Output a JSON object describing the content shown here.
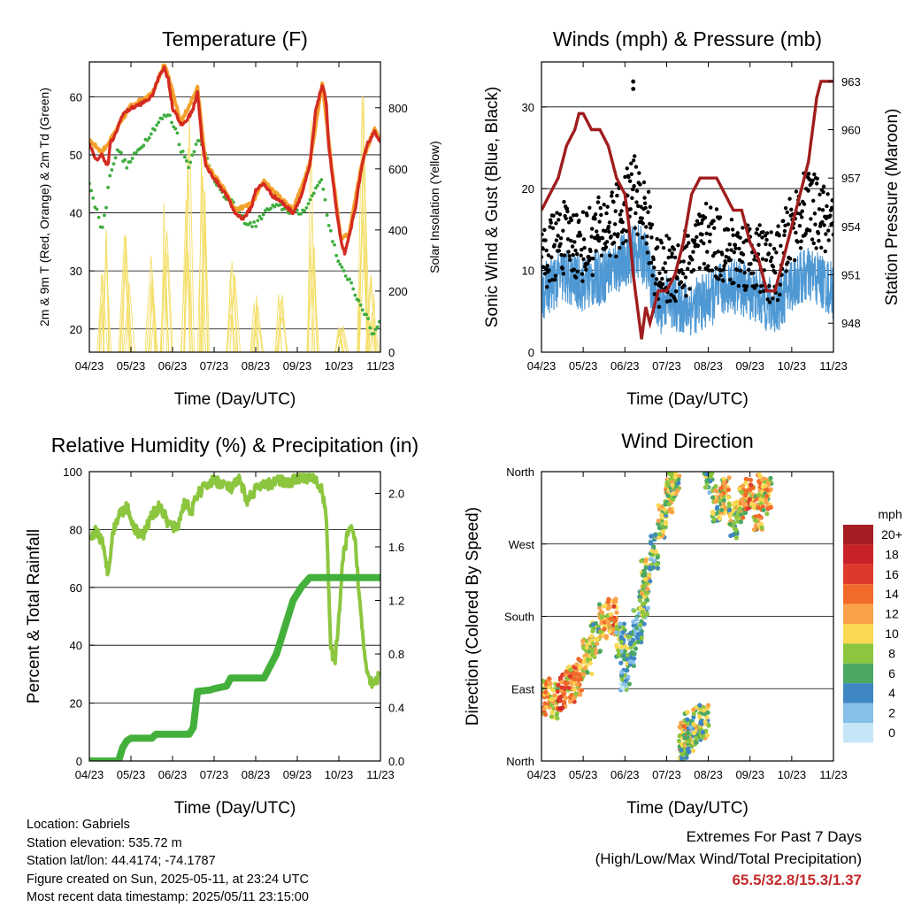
{
  "info": {
    "location": "Location: Gabriels",
    "elevation": "Station elevation: 535.72 m",
    "latlon": "Station lat/lon: 44.4174; -74.1787",
    "created": "Figure created on Sun, 2025-05-11, at 23:24 UTC",
    "latest": "Most recent data timestamp: 2025/05/11 23:15:00"
  },
  "extremes": {
    "title": "Extremes For Past 7 Days",
    "subtitle": "(High/Low/Max Wind/Total Precipitation)",
    "values": "65.5/32.8/15.3/1.37"
  },
  "colors": {
    "temp2m": "#d42b20",
    "temp9m": "#f4a12c",
    "dewpoint": "#3fae3f",
    "solar": "#f4df6b",
    "wind": "#4e98d4",
    "gust": "#000000",
    "pressure": "#a01d1d",
    "rh": "#8cc63f",
    "precip": "#44b03c"
  },
  "chart_data": [
    {
      "type": "line",
      "title": "Temperature (F)",
      "xlabel": "Time (Day/UTC)",
      "ylabel": "2m & 9m T (Red, Orange) & 2m Td (Green)",
      "y2label": "Solar Insolation (Yellow)",
      "x_ticks": [
        "04/23",
        "05/23",
        "06/23",
        "07/23",
        "08/23",
        "09/23",
        "10/23",
        "11/23"
      ],
      "xlim": [
        0,
        7
      ],
      "ylim": [
        16,
        66
      ],
      "yticks": [
        20,
        30,
        40,
        50,
        60
      ],
      "y2lim": [
        0,
        950
      ],
      "y2ticks": [
        0,
        200,
        400,
        600,
        800
      ],
      "grid": true,
      "series": [
        {
          "key": "t2m",
          "axis": "left",
          "color": "#d42b20",
          "x": [
            0,
            0.15,
            0.3,
            0.45,
            0.5,
            0.6,
            0.8,
            1.0,
            1.3,
            1.5,
            1.6,
            1.7,
            1.8,
            1.85,
            1.9,
            2.0,
            2.1,
            2.2,
            2.35,
            2.5,
            2.6,
            2.7,
            2.8,
            2.9,
            3.0,
            3.2,
            3.3,
            3.5,
            3.7,
            3.9,
            4.0,
            4.2,
            4.4,
            4.6,
            4.9,
            5.1,
            5.3,
            5.45,
            5.6,
            5.7,
            5.75,
            5.85,
            5.95,
            6.05,
            6.15,
            6.25,
            6.4,
            6.55,
            6.7,
            6.85,
            6.95,
            7.0
          ],
          "y": [
            52,
            49,
            50,
            48,
            52,
            53,
            57,
            58,
            59,
            60,
            62,
            64,
            65,
            64,
            63,
            58,
            57,
            55,
            56,
            58,
            61,
            53,
            48,
            47,
            46,
            44,
            43,
            40,
            39,
            41,
            44,
            45,
            43,
            42,
            40,
            43,
            48,
            58,
            62,
            59,
            52,
            46,
            40,
            35,
            33,
            36,
            41,
            48,
            52,
            54,
            53,
            52
          ]
        },
        {
          "key": "t9m",
          "axis": "left",
          "color": "#f4a12c",
          "x": [
            0,
            0.3,
            0.5,
            1.0,
            1.5,
            1.8,
            1.9,
            2.2,
            2.6,
            2.8,
            3.2,
            3.5,
            3.9,
            4.2,
            4.6,
            4.9,
            5.3,
            5.6,
            5.85,
            6.05,
            6.25,
            6.55,
            6.85,
            7.0
          ],
          "y": [
            52.5,
            50.5,
            52.5,
            58.5,
            60.5,
            65.5,
            63.5,
            55.5,
            61.5,
            48.5,
            44.5,
            40.5,
            41.5,
            45.5,
            42.5,
            40.5,
            48.5,
            62.5,
            46.5,
            35.5,
            36.5,
            48.5,
            54.5,
            52.5
          ]
        },
        {
          "key": "td",
          "axis": "left",
          "color": "#3fae3f",
          "x": [
            0,
            0.1,
            0.2,
            0.3,
            0.4,
            0.5,
            0.7,
            0.9,
            1.1,
            1.3,
            1.5,
            1.7,
            1.9,
            2.1,
            2.2,
            2.4,
            2.6,
            2.8,
            3.0,
            3.2,
            3.4,
            3.6,
            3.8,
            4.0,
            4.2,
            4.4,
            4.6,
            4.9,
            5.1,
            5.3,
            5.5,
            5.6,
            5.7,
            5.8,
            5.9,
            6.0,
            6.1,
            6.2,
            6.3,
            6.4,
            6.5,
            6.6,
            6.7,
            6.8,
            6.9,
            7.0
          ],
          "y": [
            45,
            42,
            40,
            37,
            41,
            47,
            51,
            48,
            50,
            52,
            54,
            56,
            57,
            54,
            51,
            48,
            53,
            50,
            46,
            43,
            42,
            40,
            38,
            38,
            40,
            41,
            41,
            40,
            40,
            42,
            45,
            46,
            40,
            37,
            34,
            31,
            30,
            29,
            28,
            26,
            24,
            23,
            22,
            19,
            20,
            22
          ]
        },
        {
          "key": "solar",
          "axis": "right",
          "color": "#f4df6b",
          "style": "spikes",
          "peaks": [
            [
              0.35,
              450
            ],
            [
              0.9,
              400
            ],
            [
              1.5,
              340
            ],
            [
              1.85,
              700
            ],
            [
              2.35,
              820
            ],
            [
              2.75,
              820
            ],
            [
              3.45,
              300
            ],
            [
              4.0,
              200
            ],
            [
              4.6,
              230
            ],
            [
              5.35,
              820
            ],
            [
              6.05,
              100
            ],
            [
              6.6,
              900
            ],
            [
              6.8,
              280
            ]
          ]
        }
      ]
    },
    {
      "type": "line",
      "title": "Winds (mph) & Pressure (mb)",
      "xlabel": "Time (Day/UTC)",
      "ylabel": "Sonic Wind & Gust (Blue, Black)",
      "y2label": "Station Pressure (Maroon)",
      "x_ticks": [
        "04/23",
        "05/23",
        "06/23",
        "07/23",
        "08/23",
        "09/23",
        "10/23",
        "11/23"
      ],
      "xlim": [
        0,
        7
      ],
      "ylim": [
        0,
        35.5
      ],
      "yticks": [
        0,
        10,
        20,
        30
      ],
      "y2lim": [
        946.2,
        964.2
      ],
      "y2ticks": [
        948,
        951,
        954,
        957,
        960,
        963
      ],
      "grid": true,
      "series": [
        {
          "key": "wind",
          "axis": "left",
          "color": "#4e98d4",
          "x": [
            0,
            0.5,
            1.0,
            1.5,
            2.0,
            2.3,
            2.5,
            2.8,
            3.0,
            3.5,
            4.0,
            4.5,
            5.0,
            5.3,
            5.6,
            6.0,
            6.3,
            6.5,
            6.8,
            7.0
          ],
          "y": [
            7,
            9,
            8,
            9,
            11,
            12,
            11,
            5,
            6,
            5,
            6,
            8,
            7,
            6,
            5,
            8,
            9,
            9,
            8,
            7
          ]
        },
        {
          "key": "gust",
          "axis": "left",
          "color": "#000000",
          "x": [
            0,
            0.5,
            1.0,
            1.5,
            2.0,
            2.2,
            2.3,
            2.5,
            2.8,
            3.0,
            3.5,
            4.0,
            4.5,
            5.0,
            5.3,
            5.6,
            6.0,
            6.2,
            6.4,
            6.6,
            6.8,
            7.0
          ],
          "y": [
            11,
            14,
            13,
            15,
            17,
            21,
            18,
            17,
            9,
            10,
            11,
            14,
            12,
            12,
            11,
            10,
            15,
            17,
            18,
            17,
            16,
            14
          ],
          "outliers": [
            [
              2.2,
              33.1
            ],
            [
              2.2,
              32.2
            ]
          ]
        },
        {
          "key": "pressure",
          "axis": "right",
          "color": "#a01d1d",
          "x": [
            0,
            0.2,
            0.4,
            0.6,
            0.8,
            0.9,
            1.0,
            1.2,
            1.4,
            1.6,
            1.8,
            2.0,
            2.1,
            2.2,
            2.3,
            2.4,
            2.5,
            2.6,
            2.7,
            2.8,
            2.9,
            3.0,
            3.2,
            3.4,
            3.6,
            3.8,
            4.0,
            4.2,
            4.4,
            4.6,
            4.8,
            5.0,
            5.2,
            5.4,
            5.6,
            5.8,
            6.0,
            6.2,
            6.4,
            6.5,
            6.6,
            6.7,
            6.8,
            6.9,
            7.0
          ],
          "y": [
            955,
            956,
            957,
            959,
            960,
            961,
            961,
            960,
            960,
            959,
            957,
            956,
            954,
            951,
            949,
            947,
            949,
            948,
            949,
            950,
            950,
            950,
            951,
            953,
            956,
            957,
            957,
            957,
            956,
            955,
            955,
            953,
            952,
            950,
            950,
            952,
            954,
            956,
            958,
            960,
            962,
            963,
            963,
            963,
            963
          ]
        }
      ]
    },
    {
      "type": "line",
      "title": "Relative Humidity (%) & Precipitation (in)",
      "xlabel": "Time (Day/UTC)",
      "ylabel": "Percent & Total Rainfall",
      "x_ticks": [
        "04/23",
        "05/23",
        "06/23",
        "07/23",
        "08/23",
        "09/23",
        "10/23",
        "11/23"
      ],
      "xlim": [
        0,
        7
      ],
      "ylim": [
        0,
        100
      ],
      "yticks": [
        0,
        20,
        40,
        60,
        80,
        100
      ],
      "y2lim": [
        0,
        2.162
      ],
      "y2ticks": [
        0.0,
        0.4,
        0.8,
        1.2,
        1.6,
        2.0
      ],
      "grid": true,
      "series": [
        {
          "key": "rh",
          "axis": "left",
          "color": "#8cc63f",
          "x": [
            0,
            0.15,
            0.3,
            0.45,
            0.55,
            0.7,
            0.9,
            1.1,
            1.3,
            1.5,
            1.7,
            1.9,
            2.1,
            2.3,
            2.45,
            2.6,
            2.8,
            3.0,
            3.2,
            3.4,
            3.6,
            3.8,
            4.0,
            4.2,
            4.4,
            4.6,
            4.8,
            5.0,
            5.2,
            5.35,
            5.5,
            5.6,
            5.7,
            5.8,
            5.9,
            6.0,
            6.1,
            6.2,
            6.3,
            6.4,
            6.5,
            6.6,
            6.7,
            6.8,
            6.9,
            7.0
          ],
          "y": [
            75,
            80,
            76,
            65,
            78,
            85,
            88,
            80,
            78,
            85,
            88,
            82,
            80,
            90,
            86,
            92,
            95,
            97,
            96,
            94,
            97,
            90,
            94,
            95,
            96,
            97,
            96,
            98,
            98,
            98,
            96,
            93,
            85,
            40,
            33,
            50,
            70,
            78,
            80,
            75,
            55,
            40,
            30,
            27,
            28,
            30
          ]
        },
        {
          "key": "precip",
          "axis": "right",
          "color": "#44b03c",
          "x": [
            0,
            0.7,
            0.8,
            0.9,
            1.0,
            1.5,
            1.6,
            2.0,
            2.4,
            2.5,
            2.6,
            2.9,
            3.0,
            3.3,
            3.4,
            4.2,
            4.5,
            4.7,
            4.9,
            5.1,
            5.3,
            5.45,
            7.0
          ],
          "y": [
            0,
            0,
            0.1,
            0.15,
            0.17,
            0.17,
            0.2,
            0.2,
            0.2,
            0.25,
            0.52,
            0.53,
            0.54,
            0.56,
            0.62,
            0.62,
            0.8,
            1.0,
            1.2,
            1.3,
            1.37,
            1.37,
            1.37
          ]
        }
      ]
    },
    {
      "type": "scatter",
      "title": "Wind Direction",
      "xlabel": "Time (Day/UTC)",
      "ylabel": "Direction (Colored By Speed)",
      "x_ticks": [
        "04/23",
        "05/23",
        "06/23",
        "07/23",
        "08/23",
        "09/23",
        "10/23",
        "11/23"
      ],
      "xlim": [
        0,
        7
      ],
      "ylim": [
        0,
        360
      ],
      "yticks": [
        {
          "v": 0,
          "label": "North"
        },
        {
          "v": 90,
          "label": "East"
        },
        {
          "v": 180,
          "label": "South"
        },
        {
          "v": 270,
          "label": "West"
        },
        {
          "v": 360,
          "label": "North"
        }
      ],
      "grid": true,
      "legend": {
        "title": "mph",
        "labels": [
          "20+",
          "18",
          "16",
          "14",
          "12",
          "10",
          "8",
          "6",
          "4",
          "2",
          "0"
        ],
        "colors": [
          "#a61c24",
          "#c92128",
          "#de3a2c",
          "#f26a2a",
          "#f9a24a",
          "#fbd852",
          "#8cc63f",
          "#4aa863",
          "#3f86c4",
          "#86bfe8",
          "#c6e6f8"
        ]
      },
      "clusters": [
        [
          0.1,
          80,
          12
        ],
        [
          0.3,
          75,
          10
        ],
        [
          0.5,
          85,
          14
        ],
        [
          0.7,
          95,
          12
        ],
        [
          0.9,
          105,
          12
        ],
        [
          1.1,
          130,
          10
        ],
        [
          1.3,
          150,
          8
        ],
        [
          1.5,
          175,
          10
        ],
        [
          1.7,
          180,
          12
        ],
        [
          1.9,
          150,
          6
        ],
        [
          2.0,
          110,
          4
        ],
        [
          2.15,
          140,
          6
        ],
        [
          2.3,
          170,
          4
        ],
        [
          2.45,
          190,
          6
        ],
        [
          2.5,
          230,
          8
        ],
        [
          2.7,
          260,
          6
        ],
        [
          2.9,
          300,
          8
        ],
        [
          3.05,
          330,
          10
        ],
        [
          3.1,
          350,
          8
        ],
        [
          3.2,
          355,
          8
        ],
        [
          3.4,
          25,
          8
        ],
        [
          3.5,
          40,
          10
        ],
        [
          3.6,
          30,
          6
        ],
        [
          3.75,
          45,
          8
        ],
        [
          3.9,
          50,
          8
        ],
        [
          4.0,
          355,
          6
        ],
        [
          4.2,
          320,
          8
        ],
        [
          4.4,
          330,
          10
        ],
        [
          4.6,
          300,
          8
        ],
        [
          4.8,
          320,
          10
        ],
        [
          5.0,
          335,
          12
        ],
        [
          5.2,
          310,
          10
        ],
        [
          5.3,
          345,
          12
        ],
        [
          5.4,
          330,
          10
        ]
      ]
    }
  ]
}
